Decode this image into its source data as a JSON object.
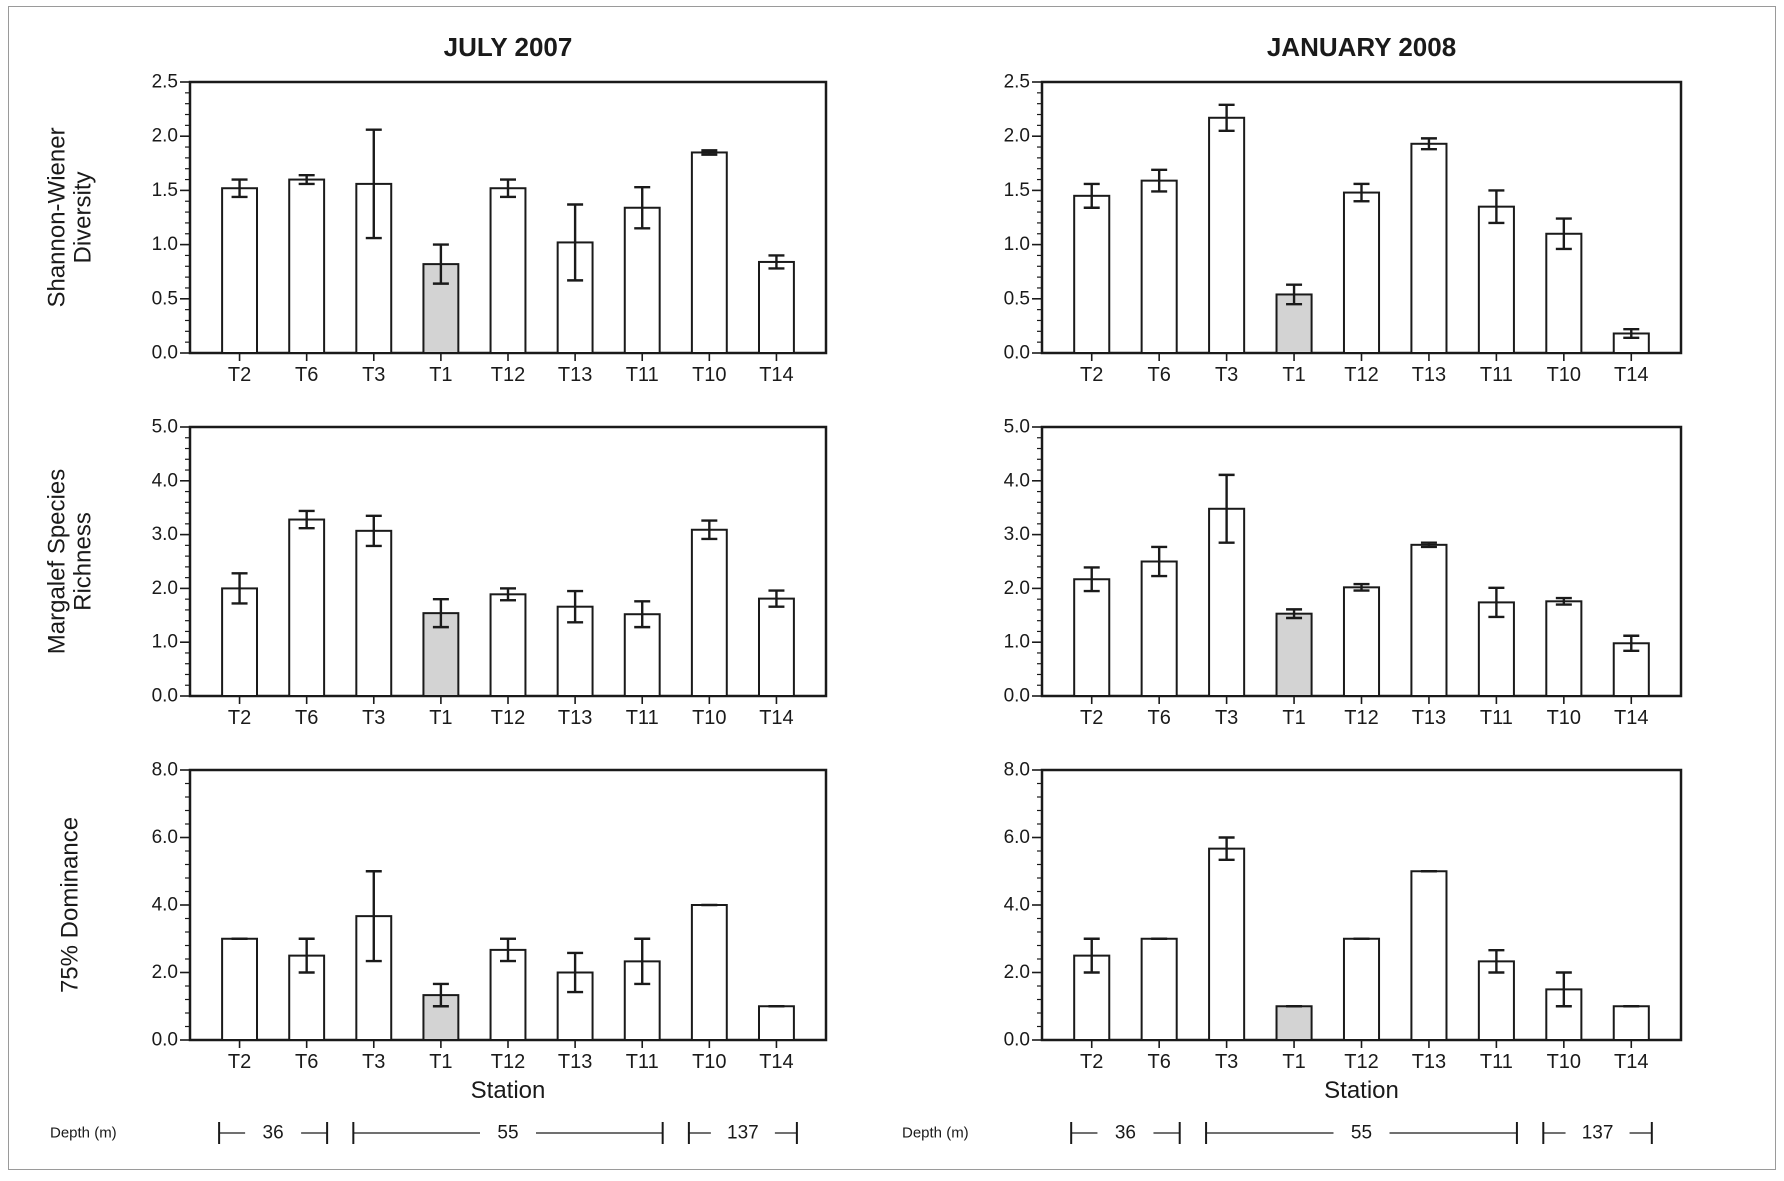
{
  "colors": {
    "bar_default": "#ffffff",
    "bar_highlight": "#d3d3d3",
    "stroke": "#1a1a1a"
  },
  "columns": [
    {
      "title": "JULY 2007",
      "xlabel": "Station"
    },
    {
      "title": "JANUARY 2008",
      "xlabel": "Station"
    }
  ],
  "row_ylabels": [
    [
      "Shannon-Wiener",
      "Diversity"
    ],
    [
      "Margalef Species",
      "Richness"
    ],
    [
      "75% Dominance"
    ]
  ],
  "depth": {
    "label": "Depth (m)",
    "groups": [
      {
        "value": "36",
        "from": "T2",
        "to": "T6"
      },
      {
        "value": "55",
        "from": "T3",
        "to": "T11"
      },
      {
        "value": "137",
        "from": "T10",
        "to": "T14"
      }
    ]
  },
  "chart_data": [
    {
      "type": "bar",
      "column": 0,
      "row": 0,
      "title": "JULY 2007",
      "xlabel": "",
      "ylabel": "Shannon-Wiener Diversity",
      "categories": [
        "T2",
        "T6",
        "T3",
        "T1",
        "T12",
        "T13",
        "T11",
        "T10",
        "T14"
      ],
      "values": [
        1.52,
        1.6,
        1.56,
        0.82,
        1.52,
        1.02,
        1.34,
        1.85,
        0.84
      ],
      "errors": [
        0.08,
        0.04,
        0.5,
        0.18,
        0.08,
        0.35,
        0.19,
        0.02,
        0.06
      ],
      "highlight": [
        "T1"
      ],
      "ylim": [
        0,
        2.5
      ],
      "yticks": [
        "0.0",
        "0.5",
        "1.0",
        "1.5",
        "2.0",
        "2.5"
      ],
      "ytick_values": [
        0,
        0.5,
        1,
        1.5,
        2,
        2.5
      ]
    },
    {
      "type": "bar",
      "column": 1,
      "row": 0,
      "title": "JANUARY 2008",
      "xlabel": "",
      "ylabel": "",
      "categories": [
        "T2",
        "T6",
        "T3",
        "T1",
        "T12",
        "T13",
        "T11",
        "T10",
        "T14"
      ],
      "values": [
        1.45,
        1.59,
        2.17,
        0.54,
        1.48,
        1.93,
        1.35,
        1.1,
        0.18
      ],
      "errors": [
        0.11,
        0.1,
        0.12,
        0.09,
        0.08,
        0.05,
        0.15,
        0.14,
        0.04
      ],
      "highlight": [
        "T1"
      ],
      "ylim": [
        0,
        2.5
      ],
      "yticks": [
        "0.0",
        "0.5",
        "1.0",
        "1.5",
        "2.0",
        "2.5"
      ],
      "ytick_values": [
        0,
        0.5,
        1,
        1.5,
        2,
        2.5
      ]
    },
    {
      "type": "bar",
      "column": 0,
      "row": 1,
      "title": "",
      "xlabel": "",
      "ylabel": "Margalef Species Richness",
      "categories": [
        "T2",
        "T6",
        "T3",
        "T1",
        "T12",
        "T13",
        "T11",
        "T10",
        "T14"
      ],
      "values": [
        2.0,
        3.28,
        3.07,
        1.54,
        1.89,
        1.66,
        1.52,
        3.09,
        1.81
      ],
      "errors": [
        0.28,
        0.16,
        0.28,
        0.26,
        0.11,
        0.29,
        0.24,
        0.17,
        0.15
      ],
      "highlight": [
        "T1"
      ],
      "ylim": [
        0,
        5
      ],
      "yticks": [
        "0.0",
        "1.0",
        "2.0",
        "3.0",
        "4.0",
        "5.0"
      ],
      "ytick_values": [
        0,
        1,
        2,
        3,
        4,
        5
      ]
    },
    {
      "type": "bar",
      "column": 1,
      "row": 1,
      "title": "",
      "xlabel": "",
      "ylabel": "",
      "categories": [
        "T2",
        "T6",
        "T3",
        "T1",
        "T12",
        "T13",
        "T11",
        "T10",
        "T14"
      ],
      "values": [
        2.17,
        2.5,
        3.48,
        1.53,
        2.02,
        2.81,
        1.74,
        1.76,
        0.98
      ],
      "errors": [
        0.22,
        0.27,
        0.63,
        0.08,
        0.06,
        0.04,
        0.27,
        0.06,
        0.14
      ],
      "highlight": [
        "T1"
      ],
      "ylim": [
        0,
        5
      ],
      "yticks": [
        "0.0",
        "1.0",
        "2.0",
        "3.0",
        "4.0",
        "5.0"
      ],
      "ytick_values": [
        0,
        1,
        2,
        3,
        4,
        5
      ]
    },
    {
      "type": "bar",
      "column": 0,
      "row": 2,
      "title": "",
      "xlabel": "Station",
      "ylabel": "75% Dominance",
      "categories": [
        "T2",
        "T6",
        "T3",
        "T1",
        "T12",
        "T13",
        "T11",
        "T10",
        "T14"
      ],
      "values": [
        3.0,
        2.5,
        3.67,
        1.33,
        2.67,
        2.0,
        2.33,
        4.0,
        1.0
      ],
      "errors": [
        0.0,
        0.5,
        1.33,
        0.33,
        0.33,
        0.58,
        0.67,
        0.0,
        0.0
      ],
      "highlight": [
        "T1"
      ],
      "ylim": [
        0,
        8
      ],
      "yticks": [
        "0.0",
        "2.0",
        "4.0",
        "6.0",
        "8.0"
      ],
      "ytick_values": [
        0,
        2,
        4,
        6,
        8
      ]
    },
    {
      "type": "bar",
      "column": 1,
      "row": 2,
      "title": "",
      "xlabel": "Station",
      "ylabel": "",
      "categories": [
        "T2",
        "T6",
        "T3",
        "T1",
        "T12",
        "T13",
        "T11",
        "T10",
        "T14"
      ],
      "values": [
        2.5,
        3.0,
        5.67,
        1.0,
        3.0,
        5.0,
        2.33,
        1.5,
        1.0
      ],
      "errors": [
        0.5,
        0.0,
        0.33,
        0.0,
        0.0,
        0.0,
        0.33,
        0.5,
        0.0
      ],
      "highlight": [
        "T1"
      ],
      "ylim": [
        0,
        8
      ],
      "yticks": [
        "0.0",
        "2.0",
        "4.0",
        "6.0",
        "8.0"
      ],
      "ytick_values": [
        0,
        2,
        4,
        6,
        8
      ]
    }
  ]
}
